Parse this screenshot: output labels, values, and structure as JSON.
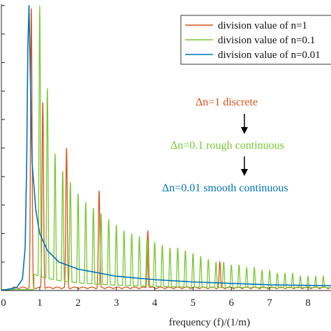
{
  "chart_data": {
    "type": "line",
    "xlabel": "frequency (f)/(1/m)",
    "ylabel": "",
    "xlim": [
      0,
      8.6
    ],
    "ylim": [
      0,
      1
    ],
    "x_ticks": [
      "0",
      "1",
      "2",
      "3",
      "4",
      "5",
      "6",
      "7",
      "8"
    ],
    "grid": false,
    "legend_position": "top-right",
    "series": [
      {
        "name": "division value of n=1",
        "color": "#D95319",
        "peaks": [
          {
            "x": 0.78,
            "y": 0.99
          },
          {
            "x": 1.08,
            "y": 0.66
          },
          {
            "x": 1.7,
            "y": 0.5
          },
          {
            "x": 2.55,
            "y": 0.35
          },
          {
            "x": 3.82,
            "y": 0.21
          },
          {
            "x": 5.7,
            "y": 0.1
          }
        ]
      },
      {
        "name": "division value of n=0.1",
        "color": "#77C831",
        "peaks": [
          {
            "x": 1.0,
            "y": 1.0
          },
          {
            "x": 1.2,
            "y": 0.71
          },
          {
            "x": 1.4,
            "y": 0.48
          },
          {
            "x": 1.6,
            "y": 0.42
          },
          {
            "x": 1.8,
            "y": 0.38
          },
          {
            "x": 2.0,
            "y": 0.34
          },
          {
            "x": 2.2,
            "y": 0.31
          },
          {
            "x": 2.4,
            "y": 0.29
          },
          {
            "x": 2.6,
            "y": 0.27
          },
          {
            "x": 2.8,
            "y": 0.25
          },
          {
            "x": 3.0,
            "y": 0.23
          },
          {
            "x": 3.2,
            "y": 0.21
          },
          {
            "x": 3.4,
            "y": 0.2
          },
          {
            "x": 3.6,
            "y": 0.19
          },
          {
            "x": 3.8,
            "y": 0.18
          },
          {
            "x": 4.0,
            "y": 0.17
          },
          {
            "x": 4.2,
            "y": 0.16
          },
          {
            "x": 4.4,
            "y": 0.15
          },
          {
            "x": 4.6,
            "y": 0.15
          },
          {
            "x": 4.8,
            "y": 0.14
          },
          {
            "x": 5.0,
            "y": 0.13
          },
          {
            "x": 5.2,
            "y": 0.12
          },
          {
            "x": 5.4,
            "y": 0.11
          },
          {
            "x": 5.6,
            "y": 0.1
          },
          {
            "x": 5.8,
            "y": 0.1
          },
          {
            "x": 6.0,
            "y": 0.09
          },
          {
            "x": 6.2,
            "y": 0.09
          },
          {
            "x": 6.4,
            "y": 0.08
          },
          {
            "x": 6.6,
            "y": 0.08
          },
          {
            "x": 6.8,
            "y": 0.07
          },
          {
            "x": 7.0,
            "y": 0.07
          },
          {
            "x": 7.2,
            "y": 0.06
          },
          {
            "x": 7.4,
            "y": 0.06
          },
          {
            "x": 7.6,
            "y": 0.06
          },
          {
            "x": 7.8,
            "y": 0.05
          },
          {
            "x": 8.0,
            "y": 0.05
          },
          {
            "x": 8.2,
            "y": 0.05
          },
          {
            "x": 8.4,
            "y": 0.05
          }
        ]
      },
      {
        "name": "division value of n=0.01",
        "color": "#0072BD",
        "peak": {
          "x": 0.72,
          "y": 1.0
        },
        "points": [
          {
            "x": 0.0,
            "y": 0.0
          },
          {
            "x": 0.4,
            "y": 0.01
          },
          {
            "x": 0.55,
            "y": 0.04
          },
          {
            "x": 0.62,
            "y": 0.15
          },
          {
            "x": 0.66,
            "y": 0.45
          },
          {
            "x": 0.69,
            "y": 0.85
          },
          {
            "x": 0.72,
            "y": 1.0
          },
          {
            "x": 0.76,
            "y": 0.72
          },
          {
            "x": 0.8,
            "y": 0.45
          },
          {
            "x": 0.9,
            "y": 0.28
          },
          {
            "x": 1.0,
            "y": 0.2
          },
          {
            "x": 1.2,
            "y": 0.14
          },
          {
            "x": 1.5,
            "y": 0.1
          },
          {
            "x": 2.0,
            "y": 0.075
          },
          {
            "x": 3.0,
            "y": 0.05
          },
          {
            "x": 4.0,
            "y": 0.038
          },
          {
            "x": 5.0,
            "y": 0.03
          },
          {
            "x": 6.0,
            "y": 0.025
          },
          {
            "x": 7.0,
            "y": 0.02
          },
          {
            "x": 8.0,
            "y": 0.018
          },
          {
            "x": 8.6,
            "y": 0.017
          }
        ]
      }
    ],
    "annotations": [
      {
        "text": "Δn=1 discrete",
        "color": "#D95319"
      },
      {
        "text": "Δn=0.1 rough continuous",
        "color": "#77C831"
      },
      {
        "text": "Δn=0.01 smooth continuous",
        "color": "#0072BD"
      }
    ]
  }
}
